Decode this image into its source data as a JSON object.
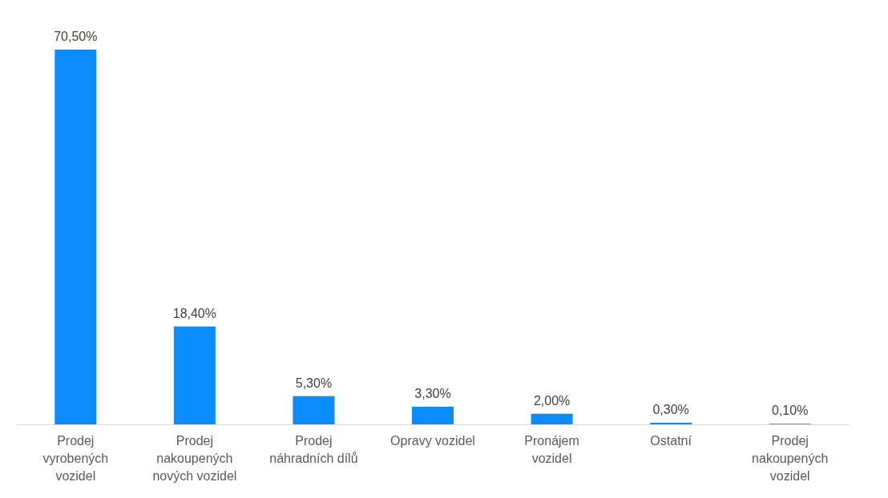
{
  "chart_data": {
    "type": "bar",
    "categories": [
      "Prodej vyrobených vozidel",
      "Prodej nakoupených nových vozidel",
      "Prodej náhradních dílů",
      "Opravy vozidel",
      "Pronájem vozidel",
      "Ostatní",
      "Prodej nakoupených vozidel"
    ],
    "values": [
      70.5,
      18.4,
      5.3,
      3.3,
      2.0,
      0.3,
      0.1
    ],
    "value_labels": [
      "70,50%",
      "18,40%",
      "5,30%",
      "3,30%",
      "2,00%",
      "0,30%",
      "0,10%"
    ],
    "color": "#0a8cff"
  }
}
